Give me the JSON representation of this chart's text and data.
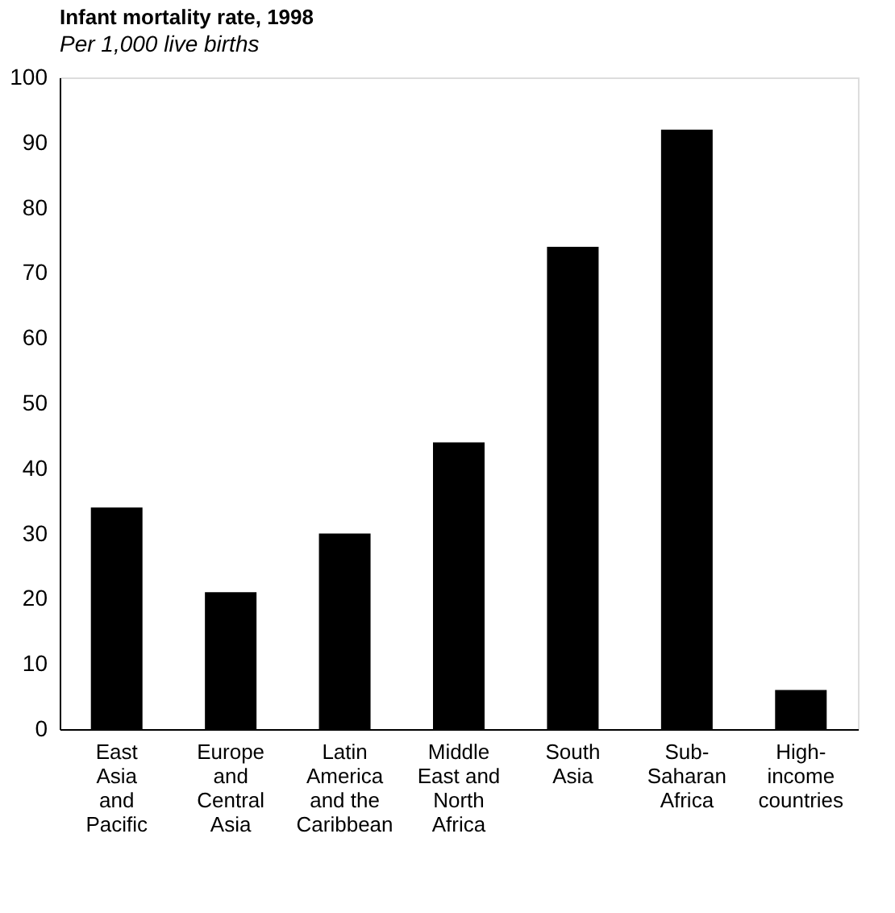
{
  "chart_data": {
    "type": "bar",
    "title": "Infant mortality rate, 1998",
    "subtitle": "Per 1,000 live births",
    "categories": [
      "East\nAsia\nand\nPacific",
      "Europe\nand\nCentral\nAsia",
      "Latin\nAmerica\nand the\nCaribbean",
      "Middle\nEast and\nNorth\nAfrica",
      "South\nAsia",
      "Sub-\nSaharan\nAfrica",
      "High-\nincome\ncountries"
    ],
    "values": [
      34,
      21,
      30,
      44,
      74,
      92,
      6
    ],
    "color": "#000000",
    "ylim": [
      0,
      100
    ],
    "yticks": [
      0,
      10,
      20,
      30,
      40,
      50,
      60,
      70,
      80,
      90,
      100
    ],
    "grid": false
  }
}
